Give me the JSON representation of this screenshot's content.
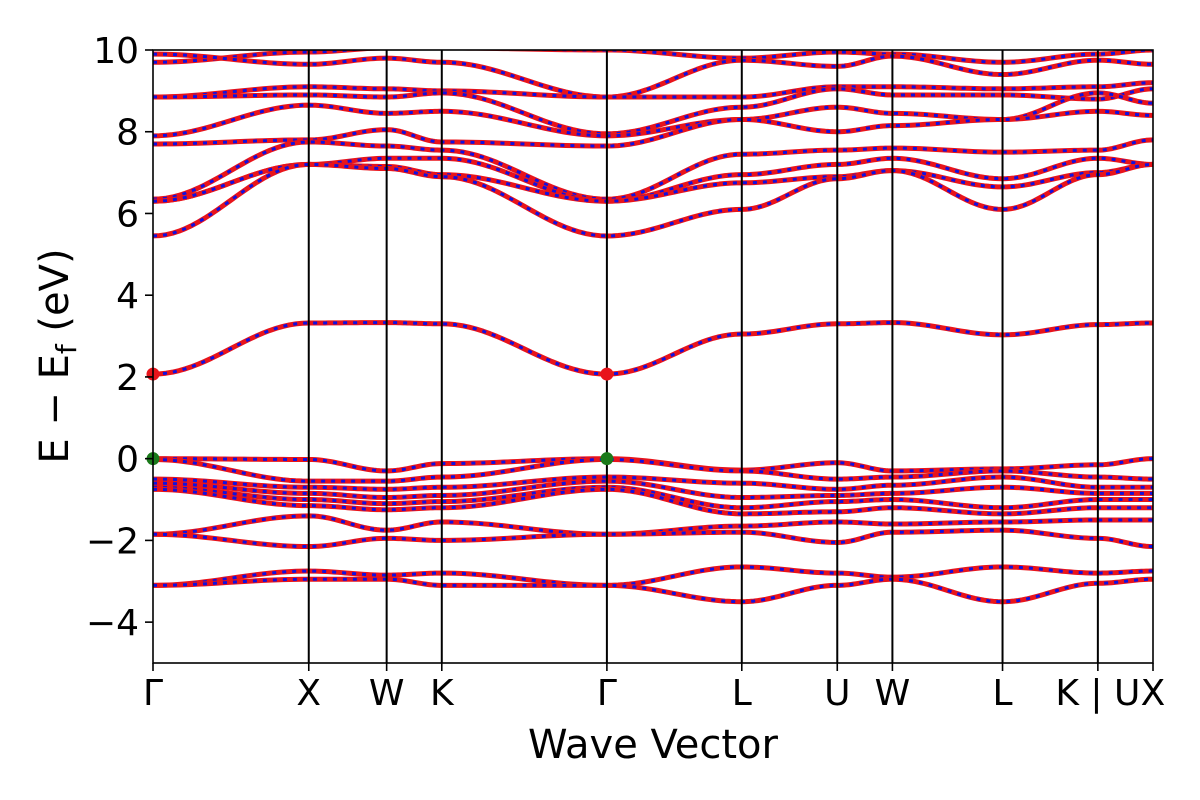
{
  "chart_data": {
    "type": "line",
    "title": "",
    "xlabel": "Wave Vector",
    "ylabel": {
      "main": "E − E",
      "sub": "f",
      "unit": " (eV)"
    },
    "ylim": [
      -5,
      10
    ],
    "y_ticks": [
      -4,
      -2,
      0,
      2,
      4,
      6,
      8,
      10
    ],
    "y_tick_labels": [
      "−4",
      "−2",
      "0",
      "2",
      "4",
      "6",
      "8",
      "10"
    ],
    "k_points": [
      {
        "label": "Γ",
        "x": 0.0
      },
      {
        "label": "X",
        "x": 1.0
      },
      {
        "label": "W",
        "x": 1.5
      },
      {
        "label": "K",
        "x": 1.854
      },
      {
        "label": "Γ",
        "x": 2.914
      },
      {
        "label": "L",
        "x": 3.78
      },
      {
        "label": "U",
        "x": 4.393
      },
      {
        "label": "W",
        "x": 4.747
      },
      {
        "label": "L",
        "x": 5.454
      },
      {
        "label": "K | U",
        "x": 6.066
      },
      {
        "label": "X",
        "x": 6.42
      }
    ],
    "xlim": [
      0,
      6.42
    ],
    "grid": false,
    "legend": "none",
    "markers": [
      {
        "x": 0.0,
        "y": 2.07,
        "color": "#e8141b",
        "label": "CBM"
      },
      {
        "x": 2.914,
        "y": 2.07,
        "color": "#e8141b",
        "label": "CBM"
      },
      {
        "x": 0.0,
        "y": 0.0,
        "color": "#1a7a1a",
        "label": "VBM"
      },
      {
        "x": 2.914,
        "y": 0.0,
        "color": "#1a7a1a",
        "label": "VBM"
      }
    ],
    "colors": {
      "spin_up": "#e8141b",
      "spin_down": "#1010e0",
      "kline": "#000000"
    },
    "bands": [
      {
        "name": "c9",
        "values": [
          9.7,
          9.95,
          10.05,
          10.05,
          10.0,
          9.8,
          9.95,
          9.9,
          9.7,
          9.9,
          10.0
        ]
      },
      {
        "name": "c8",
        "values": [
          9.9,
          9.65,
          9.8,
          9.7,
          8.85,
          9.75,
          9.6,
          9.85,
          9.4,
          9.75,
          9.65
        ]
      },
      {
        "name": "c7",
        "values": [
          8.85,
          9.1,
          9.05,
          9.0,
          8.85,
          8.85,
          9.1,
          9.1,
          9.05,
          9.1,
          9.2
        ]
      },
      {
        "name": "c6",
        "values": [
          8.85,
          8.9,
          8.85,
          8.95,
          7.95,
          8.6,
          9.05,
          8.9,
          8.9,
          8.8,
          9.05
        ]
      },
      {
        "name": "c5",
        "values": [
          7.9,
          8.65,
          8.45,
          8.5,
          7.9,
          8.3,
          8.6,
          8.45,
          8.3,
          8.95,
          8.7
        ]
      },
      {
        "name": "c4",
        "values": [
          7.7,
          7.8,
          8.05,
          7.75,
          7.65,
          8.3,
          8.0,
          8.15,
          8.3,
          8.5,
          8.4
        ]
      },
      {
        "name": "c3",
        "values": [
          6.35,
          7.75,
          7.65,
          7.55,
          6.35,
          7.45,
          7.55,
          7.6,
          7.5,
          7.55,
          7.8
        ]
      },
      {
        "name": "c2",
        "values": [
          6.3,
          7.2,
          7.35,
          7.35,
          6.3,
          6.95,
          7.2,
          7.35,
          6.85,
          7.35,
          7.2
        ]
      },
      {
        "name": "c1",
        "values": [
          6.3,
          7.2,
          7.15,
          6.95,
          6.3,
          6.75,
          6.9,
          7.05,
          6.65,
          7.0,
          7.2
        ]
      },
      {
        "name": "c0",
        "values": [
          5.45,
          7.2,
          7.1,
          6.9,
          5.45,
          6.1,
          6.85,
          7.05,
          6.1,
          6.95,
          7.2
        ]
      },
      {
        "name": "cb",
        "values": [
          2.07,
          3.32,
          3.33,
          3.3,
          2.07,
          3.05,
          3.3,
          3.33,
          3.03,
          3.28,
          3.32
        ]
      },
      {
        "name": "v1",
        "values": [
          0.0,
          -0.02,
          -0.3,
          -0.12,
          0.0,
          -0.28,
          -0.1,
          -0.3,
          -0.25,
          -0.15,
          0.0
        ]
      },
      {
        "name": "v2",
        "values": [
          -0.02,
          -0.55,
          -0.55,
          -0.45,
          -0.02,
          -0.3,
          -0.5,
          -0.45,
          -0.3,
          -0.45,
          -0.5
        ]
      },
      {
        "name": "v3",
        "values": [
          -0.5,
          -0.7,
          -0.75,
          -0.7,
          -0.45,
          -0.6,
          -0.75,
          -0.65,
          -0.45,
          -0.7,
          -0.7
        ]
      },
      {
        "name": "v4",
        "values": [
          -0.6,
          -0.85,
          -0.95,
          -0.9,
          -0.55,
          -0.95,
          -0.9,
          -0.85,
          -0.7,
          -0.85,
          -0.85
        ]
      },
      {
        "name": "v5",
        "values": [
          -0.7,
          -1.0,
          -1.1,
          -1.05,
          -0.7,
          -1.2,
          -1.05,
          -1.0,
          -1.2,
          -1.0,
          -1.0
        ]
      },
      {
        "name": "v6",
        "values": [
          -0.75,
          -1.15,
          -1.25,
          -1.2,
          -0.75,
          -1.35,
          -1.3,
          -1.2,
          -1.35,
          -1.2,
          -1.2
        ]
      },
      {
        "name": "v7",
        "values": [
          -1.85,
          -1.4,
          -1.75,
          -1.55,
          -1.85,
          -1.65,
          -1.55,
          -1.6,
          -1.55,
          -1.5,
          -1.5
        ]
      },
      {
        "name": "v8",
        "values": [
          -1.85,
          -2.15,
          -1.95,
          -2.0,
          -1.85,
          -1.8,
          -2.05,
          -1.8,
          -1.75,
          -1.95,
          -2.15
        ]
      },
      {
        "name": "v9",
        "values": [
          -3.1,
          -2.75,
          -2.85,
          -2.8,
          -3.1,
          -2.65,
          -2.8,
          -2.9,
          -2.65,
          -2.8,
          -2.75
        ]
      },
      {
        "name": "v10",
        "values": [
          -3.1,
          -2.95,
          -2.95,
          -3.1,
          -3.1,
          -3.5,
          -3.1,
          -2.95,
          -3.5,
          -3.05,
          -2.95
        ]
      }
    ]
  }
}
